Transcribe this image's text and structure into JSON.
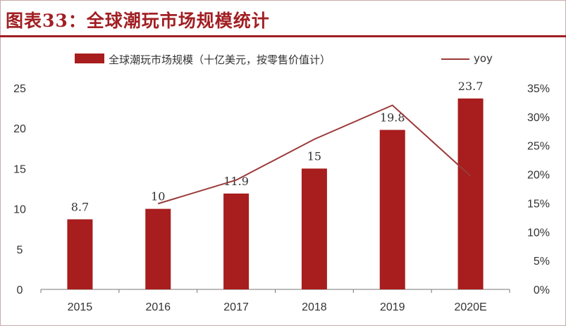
{
  "title": "图表33：全球潮玩市场规模统计",
  "legend": {
    "bar": "全球潮玩市场规模（十亿美元，按零售价值计）",
    "line": "yoy"
  },
  "colors": {
    "bar": "#a81d1d",
    "line": "#9b3a3a",
    "title": "#a11f23"
  },
  "chart_data": {
    "type": "bar",
    "categories": [
      "2015",
      "2016",
      "2017",
      "2018",
      "2019",
      "2020E"
    ],
    "series": [
      {
        "name": "全球潮玩市场规模（十亿美元，按零售价值计）",
        "kind": "bar",
        "axis": "left",
        "values": [
          8.7,
          10,
          11.9,
          15,
          19.8,
          23.7
        ],
        "data_labels": [
          "8.7",
          "10",
          "11.9",
          "15",
          "19.8",
          "23.7"
        ]
      },
      {
        "name": "yoy",
        "kind": "line",
        "axis": "right",
        "values": [
          null,
          0.149,
          0.19,
          0.261,
          0.32,
          0.197
        ]
      }
    ],
    "left_axis": {
      "ylim": [
        0,
        25
      ],
      "ticks": [
        "0",
        "5",
        "10",
        "15",
        "20",
        "25"
      ]
    },
    "right_axis": {
      "ylim": [
        0,
        0.35
      ],
      "ticks": [
        "0%",
        "5%",
        "10%",
        "15%",
        "20%",
        "25%",
        "30%",
        "35%"
      ]
    },
    "grid": false,
    "legend_position": "top"
  }
}
